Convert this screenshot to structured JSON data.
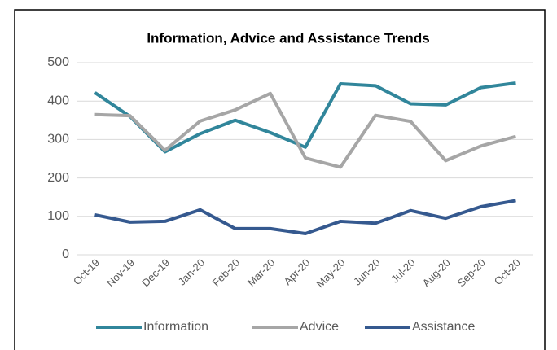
{
  "chart_data": {
    "type": "line",
    "title": "Information, Advice and Assistance Trends",
    "categories": [
      "Oct-19",
      "Nov-19",
      "Dec-19",
      "Jan-20",
      "Feb-20",
      "Mar-20",
      "Apr-20",
      "May-20",
      "Jun-20",
      "Jul-20",
      "Aug-20",
      "Sep-20",
      "Oct-20"
    ],
    "series": [
      {
        "name": "Information",
        "color": "#31869b",
        "values": [
          422,
          360,
          268,
          315,
          350,
          318,
          280,
          445,
          440,
          393,
          390,
          435,
          447
        ]
      },
      {
        "name": "Advice",
        "color": "#a6a6a6",
        "values": [
          365,
          362,
          272,
          348,
          377,
          420,
          252,
          228,
          363,
          347,
          245,
          283,
          308
        ]
      },
      {
        "name": "Assistance",
        "color": "#35598f",
        "values": [
          104,
          85,
          87,
          117,
          68,
          68,
          55,
          87,
          82,
          115,
          95,
          125,
          141
        ]
      }
    ],
    "ylim": [
      0,
      500
    ],
    "yticks": [
      0,
      100,
      200,
      300,
      400,
      500
    ],
    "grid": true,
    "legend": "bottom"
  }
}
